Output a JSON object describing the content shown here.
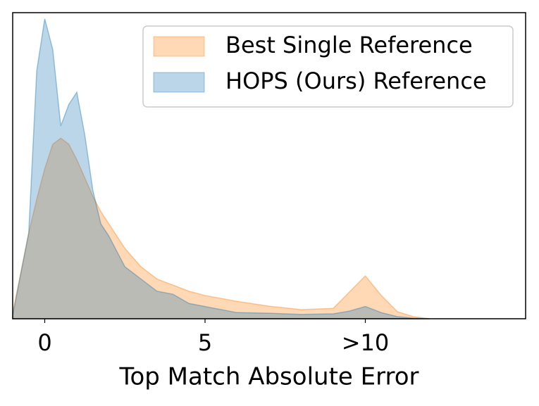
{
  "chart_data": {
    "type": "area",
    "xlabel": "Top Match Absolute Error",
    "x": [
      -1,
      -0.5,
      -0.25,
      0,
      0.25,
      0.5,
      0.75,
      1,
      1.25,
      1.5,
      1.75,
      2,
      2.5,
      3,
      3.5,
      4,
      4.5,
      5,
      6,
      7,
      8,
      9,
      9.5,
      10,
      10.5,
      11,
      11.5,
      12
    ],
    "series": [
      {
        "name": "Best Single Reference",
        "color": "#ff7f0e",
        "values": [
          0.02,
          0.28,
          0.39,
          0.49,
          0.57,
          0.59,
          0.57,
          0.52,
          0.46,
          0.4,
          0.35,
          0.31,
          0.23,
          0.17,
          0.13,
          0.11,
          0.09,
          0.076,
          0.057,
          0.041,
          0.03,
          0.034,
          0.087,
          0.14,
          0.076,
          0.023,
          0.007,
          0
        ]
      },
      {
        "name": "HOPS (Ours) Reference",
        "color": "#1f77b4",
        "values": [
          0.01,
          0.28,
          0.81,
          0.98,
          0.88,
          0.63,
          0.7,
          0.74,
          0.6,
          0.42,
          0.31,
          0.27,
          0.17,
          0.13,
          0.09,
          0.08,
          0.05,
          0.04,
          0.02,
          0.018,
          0.014,
          0.016,
          0.025,
          0.04,
          0.02,
          0.007,
          0.002,
          0
        ]
      }
    ],
    "xlim": [
      -1,
      15
    ],
    "ylim": [
      0,
      1
    ],
    "xticks": [
      0,
      5,
      {
        "value": 10,
        "label": ">10"
      }
    ],
    "legend": "upper right"
  }
}
